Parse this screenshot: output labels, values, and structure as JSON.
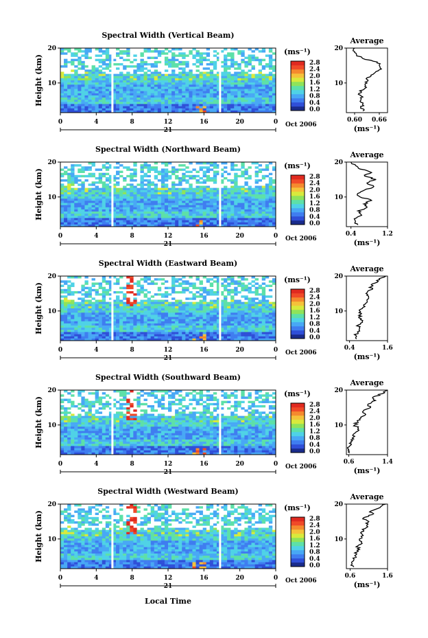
{
  "page": {
    "xlabel": "Local Time"
  },
  "colorbar": {
    "unit": "(ms⁻¹)",
    "ticks": [
      "0.0",
      "0.4",
      "0.8",
      "1.2",
      "1.6",
      "2.0",
      "2.4",
      "2.8"
    ],
    "colors": [
      "#1a2c8c",
      "#2f4fd8",
      "#3f7df0",
      "#48a8f5",
      "#4fd2e6",
      "#5de0a8",
      "#8fe35a",
      "#d8ea3c",
      "#f5c23a",
      "#f58a2e",
      "#f04a28",
      "#e02a20"
    ]
  },
  "chart_data": [
    {
      "type": "heatmap",
      "title": "Spectral Width (Vertical Beam)",
      "ylabel": "Height (km)",
      "x_ticks": [
        "0",
        "4",
        "8",
        "12",
        "16",
        "20",
        "0"
      ],
      "y_ticks": [
        "20",
        "10"
      ],
      "date_day": "21",
      "date_label": "Oct 2006",
      "xlim": [
        0,
        24
      ],
      "ylim": [
        1.5,
        20
      ],
      "gaps_local_time": [
        5.8,
        17.8
      ],
      "profile": {
        "title": "Average",
        "xlabel": "(ms⁻¹)",
        "x_ticks": [
          "0.60",
          "0.66"
        ],
        "xlim": [
          0.58,
          0.68
        ],
        "y_ticks": [
          "20",
          "10"
        ],
        "heights": [
          2,
          3,
          4,
          5,
          6,
          7,
          8,
          9,
          10,
          11,
          12,
          13,
          14,
          15,
          16,
          17,
          18,
          19,
          20
        ],
        "values": [
          0.62,
          0.615,
          0.62,
          0.615,
          0.62,
          0.61,
          0.62,
          0.625,
          0.63,
          0.63,
          0.64,
          0.65,
          0.665,
          0.66,
          0.655,
          0.62,
          0.605,
          0.6,
          0.6
        ]
      }
    },
    {
      "type": "heatmap",
      "title": "Spectral Width (Northward Beam)",
      "ylabel": "Height (km)",
      "x_ticks": [
        "0",
        "4",
        "8",
        "12",
        "16",
        "20",
        "0"
      ],
      "y_ticks": [
        "20",
        "10"
      ],
      "date_day": "21",
      "date_label": "Oct 2006",
      "xlim": [
        0,
        24
      ],
      "ylim": [
        1.5,
        20
      ],
      "gaps_local_time": [
        5.8,
        17.8
      ],
      "profile": {
        "title": "Average",
        "xlabel": "(ms⁻¹)",
        "x_ticks": [
          "0.4",
          "1.2"
        ],
        "xlim": [
          0.3,
          1.2
        ],
        "y_ticks": [
          "20",
          "10"
        ],
        "heights": [
          2,
          3,
          4,
          5,
          6,
          7,
          8,
          9,
          10,
          11,
          12,
          13,
          14,
          15,
          16,
          17,
          18,
          19,
          20
        ],
        "values": [
          0.55,
          0.5,
          0.52,
          0.62,
          0.55,
          0.75,
          0.68,
          0.85,
          0.6,
          0.55,
          0.7,
          0.9,
          0.75,
          0.95,
          0.7,
          0.85,
          0.6,
          0.5,
          0.4
        ]
      }
    },
    {
      "type": "heatmap",
      "title": "Spectral Width (Eastward Beam)",
      "ylabel": "Height (km)",
      "x_ticks": [
        "0",
        "4",
        "8",
        "12",
        "16",
        "20",
        "0"
      ],
      "y_ticks": [
        "20",
        "10"
      ],
      "date_day": "21",
      "date_label": "Oct 2006",
      "xlim": [
        0,
        24
      ],
      "ylim": [
        1.5,
        20
      ],
      "gaps_local_time": [
        5.8,
        17.8
      ],
      "profile": {
        "title": "Average",
        "xlabel": "(ms⁻¹)",
        "x_ticks": [
          "0.4",
          "1.6"
        ],
        "xlim": [
          0.3,
          1.6
        ],
        "y_ticks": [
          "20",
          "10"
        ],
        "heights": [
          2,
          3,
          4,
          5,
          6,
          7,
          8,
          9,
          10,
          11,
          12,
          13,
          14,
          15,
          16,
          17,
          18,
          19,
          20
        ],
        "values": [
          0.62,
          0.6,
          0.65,
          0.72,
          0.68,
          0.8,
          0.7,
          0.75,
          0.72,
          0.82,
          0.9,
          0.95,
          1.0,
          0.92,
          1.05,
          1.1,
          1.2,
          1.35,
          1.55
        ]
      }
    },
    {
      "type": "heatmap",
      "title": "Spectral Width (Southward Beam)",
      "ylabel": "Height (km)",
      "x_ticks": [
        "0",
        "4",
        "8",
        "12",
        "16",
        "20",
        "0"
      ],
      "y_ticks": [
        "20",
        "10"
      ],
      "date_day": "21",
      "date_label": "Oct 2006",
      "xlim": [
        0,
        24
      ],
      "ylim": [
        1.5,
        20
      ],
      "gaps_local_time": [
        5.8,
        17.8
      ],
      "profile": {
        "title": "Average",
        "xlabel": "(ms⁻¹)",
        "x_ticks": [
          "0.6",
          "1.4"
        ],
        "xlim": [
          0.55,
          1.4
        ],
        "y_ticks": [
          "20",
          "10"
        ],
        "heights": [
          2,
          3,
          4,
          5,
          6,
          7,
          8,
          9,
          10,
          11,
          12,
          13,
          14,
          15,
          16,
          17,
          18,
          19,
          20
        ],
        "values": [
          0.62,
          0.6,
          0.62,
          0.65,
          0.7,
          0.68,
          0.75,
          0.8,
          0.72,
          0.78,
          0.85,
          0.95,
          0.9,
          1.05,
          1.0,
          1.15,
          1.1,
          1.3,
          1.4
        ]
      }
    },
    {
      "type": "heatmap",
      "title": "Spectral Width (Westward Beam)",
      "ylabel": "Height (km)",
      "x_ticks": [
        "0",
        "4",
        "8",
        "12",
        "16",
        "20",
        "0"
      ],
      "y_ticks": [
        "20",
        "10"
      ],
      "date_day": "21",
      "date_label": "Oct 2006",
      "xlim": [
        0,
        24
      ],
      "ylim": [
        1.5,
        20
      ],
      "gaps_local_time": [
        5.8,
        17.8
      ],
      "profile": {
        "title": "Average",
        "xlabel": "(ms⁻¹)",
        "x_ticks": [
          "0.6",
          "1.6"
        ],
        "xlim": [
          0.5,
          1.6
        ],
        "y_ticks": [
          "20",
          "10"
        ],
        "heights": [
          2,
          3,
          4,
          5,
          6,
          7,
          8,
          9,
          10,
          11,
          12,
          13,
          14,
          15,
          16,
          17,
          18,
          19,
          20
        ],
        "values": [
          0.7,
          0.65,
          0.7,
          0.75,
          0.72,
          0.85,
          0.8,
          0.9,
          0.85,
          0.95,
          0.9,
          1.0,
          1.05,
          1.1,
          0.95,
          1.2,
          1.15,
          1.4,
          1.55
        ]
      }
    }
  ]
}
